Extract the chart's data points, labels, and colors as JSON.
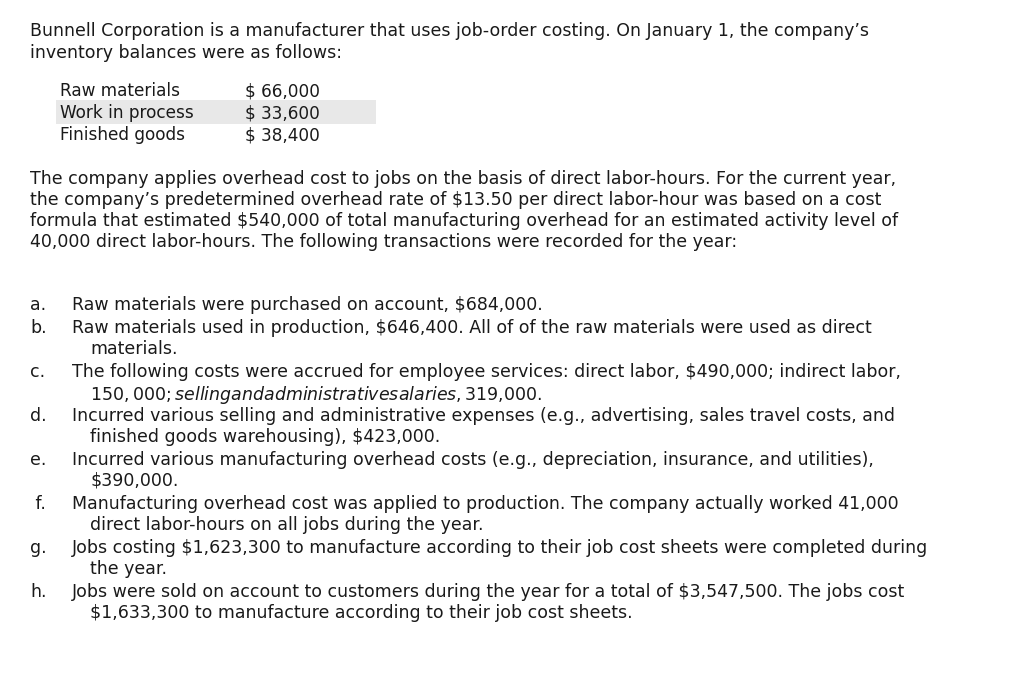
{
  "bg_color": "#ffffff",
  "text_color": "#1a1a1a",
  "font_size_body": 12.5,
  "font_size_mono": 12.2,
  "intro_line1": "Bunnell Corporation is a manufacturer that uses job-order costing. On January 1, the company’s",
  "intro_line2": "inventory balances were as follows:",
  "inventory_items": [
    {
      "label": "Raw materials   ",
      "value": "$ 66,000"
    },
    {
      "label": "Work in process ",
      "value": "$ 33,600"
    },
    {
      "label": "Finished goods  ",
      "value": "$ 38,400"
    }
  ],
  "highlight_row": 1,
  "highlight_color": "#e8e8e8",
  "overhead_lines": [
    "The company applies overhead cost to jobs on the basis of direct labor-hours. For the current year,",
    "the company’s predetermined overhead rate of $13.50 per direct labor-hour was based on a cost",
    "formula that estimated $540,000 of total manufacturing overhead for an estimated activity level of",
    "40,000 direct labor-hours. The following transactions were recorded for the year:"
  ],
  "transactions": [
    {
      "label": "a.",
      "lines": [
        "Raw materials were purchased on account, $684,000."
      ]
    },
    {
      "label": "b.",
      "lines": [
        "Raw materials used in production, $646,400. All of of the raw materials were used as direct",
        "     materials."
      ]
    },
    {
      "label": "c.",
      "lines": [
        "The following costs were accrued for employee services: direct labor, $490,000; indirect labor,",
        "     $150,000; selling and administrative salaries, $319,000."
      ]
    },
    {
      "label": "d.",
      "lines": [
        "Incurred various selling and administrative expenses (e.g., advertising, sales travel costs, and",
        "     finished goods warehousing), $423,000."
      ]
    },
    {
      "label": "e.",
      "lines": [
        "Incurred various manufacturing overhead costs (e.g., depreciation, insurance, and utilities),",
        "     $390,000."
      ]
    },
    {
      "label": " f.",
      "lines": [
        "Manufacturing overhead cost was applied to production. The company actually worked 41,000",
        "     direct labor-hours on all jobs during the year."
      ]
    },
    {
      "label": "g.",
      "lines": [
        "Jobs costing $1,623,300 to manufacture according to their job cost sheets were completed during",
        "     the year."
      ]
    },
    {
      "label": "h.",
      "lines": [
        "Jobs were sold on account to customers during the year for a total of $3,547,500. The jobs cost",
        "     $1,633,300 to manufacture according to their job cost sheets."
      ]
    }
  ]
}
